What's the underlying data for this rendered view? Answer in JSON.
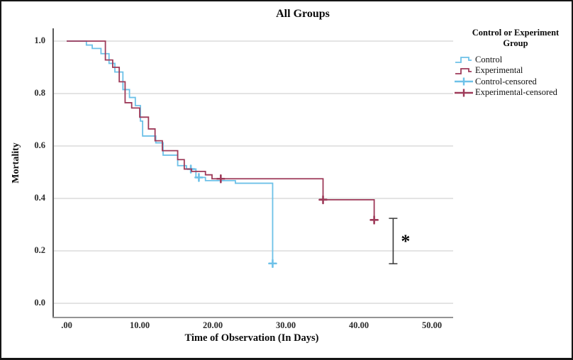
{
  "figure": {
    "title": "All Groups",
    "x_axis": {
      "title": "Time of Observation (In Days)"
    },
    "y_axis": {
      "title": "Mortality"
    },
    "legend": {
      "title": "Control or Experiment Group",
      "items": [
        {
          "label": "Control",
          "color": "#6dc1e8",
          "icon": "step-line"
        },
        {
          "label": "Experimental",
          "color": "#9e3a59",
          "icon": "step-line"
        },
        {
          "label": "Control-censored",
          "color": "#6dc1e8",
          "icon": "censor-plus"
        },
        {
          "label": "Experimental-censored",
          "color": "#9e3a59",
          "icon": "censor-plus"
        }
      ]
    },
    "annotation_symbol": "*"
  },
  "chart_data": {
    "type": "line",
    "subtype": "kaplan-meier-step",
    "title": "All Groups",
    "xlabel": "Time of Observation (In Days)",
    "ylabel": "Mortality",
    "xlim": [
      -2,
      53
    ],
    "ylim": [
      0.0,
      1.0
    ],
    "x_ticks": {
      "values": [
        0,
        10,
        20,
        30,
        40,
        50
      ],
      "labels": [
        ".00",
        "10.00",
        "20.00",
        "30.00",
        "40.00",
        "50.00"
      ]
    },
    "y_ticks": {
      "values": [
        1.0,
        0.8,
        0.6,
        0.4,
        0.2,
        0.0
      ],
      "labels": [
        "1.0",
        "0.8",
        "0.6",
        "0.4",
        "0.2",
        "0.0"
      ]
    },
    "grid": "horizontal",
    "legend_position": "right",
    "series": [
      {
        "name": "Control",
        "color": "#6dc1e8",
        "points": [
          [
            0,
            1.0
          ],
          [
            2.7,
            0.985
          ],
          [
            3.5,
            0.972
          ],
          [
            4.7,
            0.952
          ],
          [
            5.8,
            0.915
          ],
          [
            6.6,
            0.882
          ],
          [
            7.7,
            0.815
          ],
          [
            8.6,
            0.785
          ],
          [
            9.4,
            0.754
          ],
          [
            10.1,
            0.695
          ],
          [
            10.4,
            0.638
          ],
          [
            12.2,
            0.612
          ],
          [
            13.2,
            0.565
          ],
          [
            15.2,
            0.525
          ],
          [
            16.4,
            0.512
          ],
          [
            17.7,
            0.48
          ],
          [
            19.0,
            0.468
          ],
          [
            23.1,
            0.458
          ],
          [
            28.2,
            0.152
          ]
        ],
        "censored": [
          [
            17.0,
            0.512
          ],
          [
            18.1,
            0.48
          ],
          [
            28.2,
            0.152
          ]
        ]
      },
      {
        "name": "Experimental",
        "color": "#9e3a59",
        "points": [
          [
            0,
            1.0
          ],
          [
            5.3,
            0.928
          ],
          [
            6.3,
            0.9
          ],
          [
            7.2,
            0.845
          ],
          [
            8.0,
            0.765
          ],
          [
            8.9,
            0.745
          ],
          [
            10.0,
            0.71
          ],
          [
            11.2,
            0.665
          ],
          [
            12.1,
            0.62
          ],
          [
            13.1,
            0.582
          ],
          [
            15.2,
            0.548
          ],
          [
            16.1,
            0.512
          ],
          [
            17.1,
            0.503
          ],
          [
            19.0,
            0.49
          ],
          [
            19.9,
            0.475
          ],
          [
            35.1,
            0.395
          ],
          [
            42.1,
            0.318
          ]
        ],
        "censored": [
          [
            21.1,
            0.475
          ],
          [
            35.1,
            0.395
          ],
          [
            42.1,
            0.318
          ]
        ]
      }
    ],
    "error_bar": {
      "x": 44.7,
      "top": 0.324,
      "bottom": 0.151,
      "label": "*"
    }
  }
}
